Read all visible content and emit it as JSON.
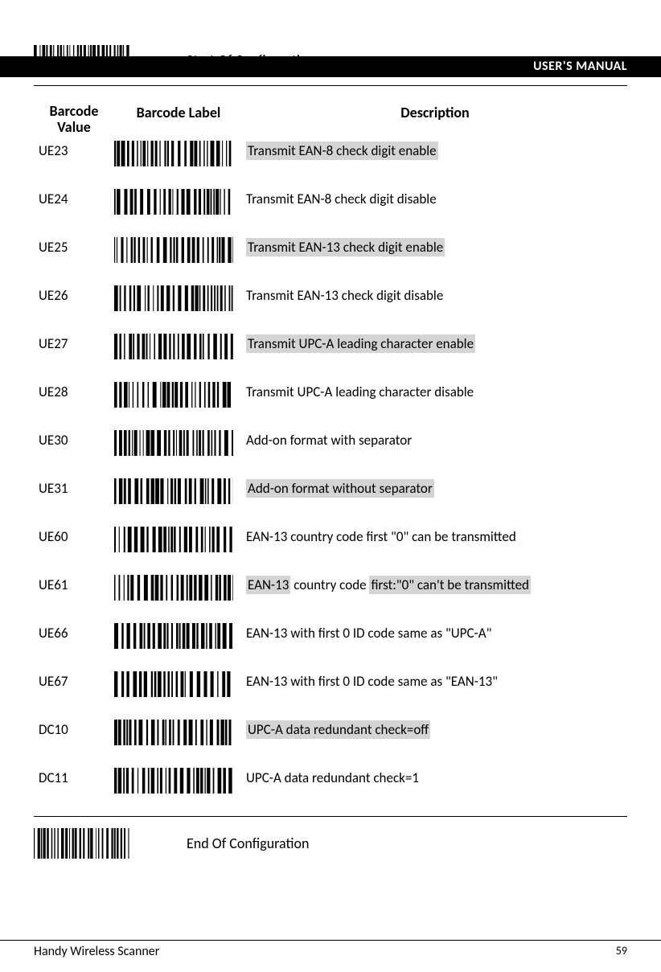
{
  "header": {
    "title": "USER'S MANUAL"
  },
  "start_config": {
    "label": "Start Of Configuration"
  },
  "end_config": {
    "label": "End Of Configuration"
  },
  "table": {
    "headers": {
      "value": "Barcode Value",
      "label": "Barcode Label",
      "desc": "Description"
    },
    "rows": [
      {
        "value": "UE23",
        "desc": "Transmit EAN-8 check digit enable",
        "highlight": "full"
      },
      {
        "value": "UE24",
        "desc": "Transmit EAN-8 check digit disable",
        "highlight": "none"
      },
      {
        "value": "UE25",
        "desc": "Transmit EAN-13 check digit enable",
        "highlight": "full"
      },
      {
        "value": "UE26",
        "desc": "Transmit EAN-13 check digit disable",
        "highlight": "none"
      },
      {
        "value": "UE27",
        "desc": "Transmit UPC-A leading character enable  ",
        "highlight": "full"
      },
      {
        "value": "UE28",
        "desc": "Transmit UPC-A leading character disable",
        "highlight": "none"
      },
      {
        "value": "UE30",
        "desc": "Add-on format with separator",
        "highlight": "none"
      },
      {
        "value": "UE31",
        "desc": "Add-on format without separator",
        "highlight": "full"
      },
      {
        "value": "UE60",
        "desc": "EAN-13 country code first \"0\" can be transmitted",
        "highlight": "none"
      },
      {
        "value": "UE61",
        "desc_parts": [
          "EAN-13",
          " country code ",
          "first:\"0\" can't be transmitted"
        ],
        "highlight": "parts"
      },
      {
        "value": "UE66",
        "desc": "EAN-13 with first 0 ID code same as \"UPC-A\"",
        "highlight": "none"
      },
      {
        "value": "UE67",
        "desc": "EAN-13 with first 0 ID code same as \"EAN-13\"",
        "highlight": "none"
      },
      {
        "value": "DC10",
        "desc": "UPC-A data redundant check=off",
        "highlight": "full"
      },
      {
        "value": "DC11",
        "desc": "UPC-A data redundant check=1",
        "highlight": "none"
      }
    ]
  },
  "footer": {
    "left": "Handy Wireless Scanner",
    "page": "59"
  }
}
